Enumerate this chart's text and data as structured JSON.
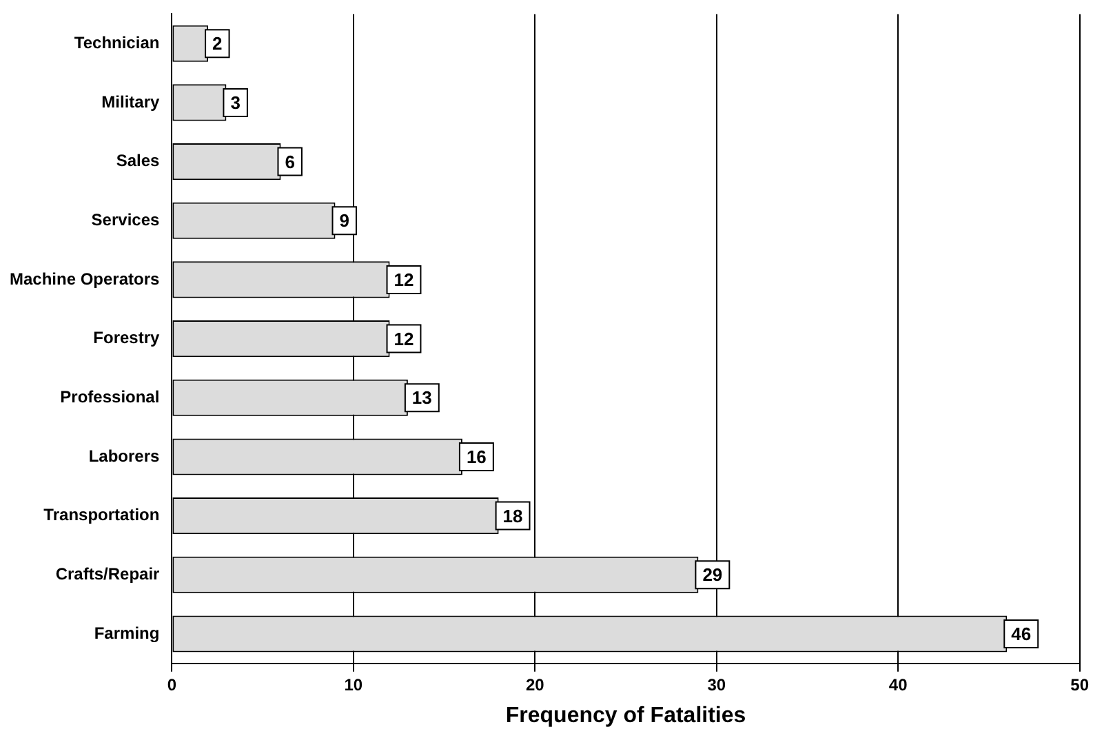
{
  "chart_data": {
    "type": "bar",
    "orientation": "horizontal",
    "xlabel": "Frequency of Fatalities",
    "categories": [
      "Technician",
      "Military",
      "Sales",
      "Services",
      "Machine Operators",
      "Forestry",
      "Professional",
      "Laborers",
      "Transportation",
      "Crafts/Repair",
      "Farming"
    ],
    "values": [
      2,
      3,
      6,
      9,
      12,
      12,
      13,
      16,
      18,
      29,
      46
    ],
    "color": "#dcdcdc",
    "xlim": [
      0,
      50
    ],
    "xticks": [
      0,
      10,
      20,
      30,
      40,
      50
    ],
    "grid": "x",
    "data_labels": true,
    "legend": false
  }
}
